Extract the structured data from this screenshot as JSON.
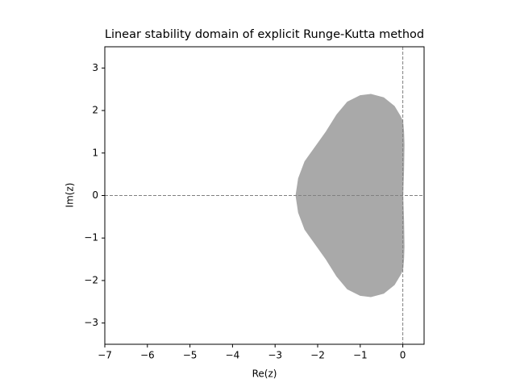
{
  "chart_data": {
    "type": "region",
    "title": "Linear stability domain of explicit Runge-Kutta method",
    "xlabel": "Re(z)",
    "ylabel": "Im(z)",
    "color": "#a9a9a9",
    "x": [
      -2.51,
      -2.45,
      -2.3,
      -2.05,
      -1.8,
      -1.55,
      -1.3,
      -1.0,
      -0.75,
      -0.45,
      -0.2,
      -0.05,
      0.0,
      0.02,
      0.03,
      0.02,
      0.0,
      0.02,
      0.03,
      0.02,
      0.0,
      -0.05,
      -0.2,
      -0.45,
      -0.75,
      -1.0,
      -1.3,
      -1.55,
      -1.8,
      -2.05,
      -2.3,
      -2.45
    ],
    "y": [
      0,
      0.4,
      0.8,
      1.15,
      1.5,
      1.9,
      2.2,
      2.35,
      2.38,
      2.3,
      2.1,
      1.85,
      1.73,
      1.5,
      1.2,
      0.6,
      0,
      -0.6,
      -1.2,
      -1.5,
      -1.73,
      -1.85,
      -2.1,
      -2.3,
      -2.38,
      -2.35,
      -2.2,
      -1.9,
      -1.5,
      -1.15,
      -0.8,
      -0.4
    ],
    "xlim": [
      -7,
      0.5
    ],
    "ylim": [
      -3.5,
      3.5
    ],
    "xticks": [
      {
        "value": -7,
        "label": "−7"
      },
      {
        "value": -6,
        "label": "−6"
      },
      {
        "value": -5,
        "label": "−5"
      },
      {
        "value": -4,
        "label": "−4"
      },
      {
        "value": -3,
        "label": "−3"
      },
      {
        "value": -2,
        "label": "−2"
      },
      {
        "value": -1,
        "label": "−1"
      },
      0
    ],
    "yticks": [
      {
        "value": -3,
        "label": "−3"
      },
      {
        "value": -2,
        "label": "−2"
      },
      {
        "value": -1,
        "label": "−1"
      },
      0,
      1,
      2,
      3
    ],
    "hlines": [
      0
    ],
    "vlines": [
      0
    ]
  }
}
